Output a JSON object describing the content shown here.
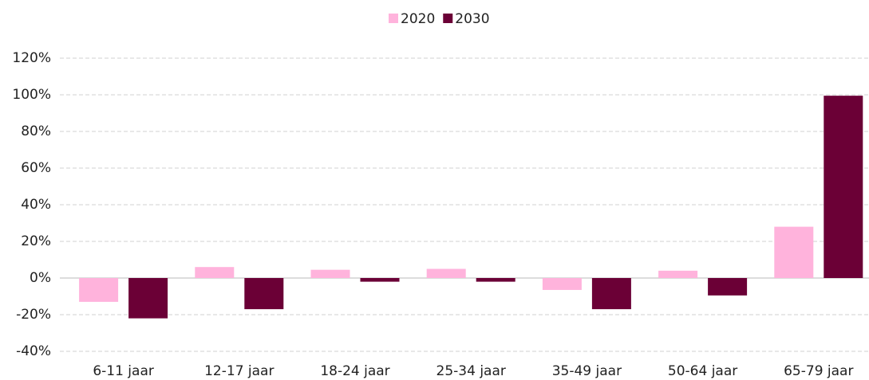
{
  "chart_data": {
    "type": "bar",
    "categories": [
      "6-11 jaar",
      "12-17 jaar",
      "18-24 jaar",
      "25-34 jaar",
      "35-49 jaar",
      "50-64 jaar",
      "65-79 jaar"
    ],
    "series": [
      {
        "name": "2020",
        "color": "#ffb3dc",
        "values": [
          -13,
          6,
          4.5,
          5,
          -6.5,
          4,
          28
        ]
      },
      {
        "name": "2030",
        "color": "#6b0036",
        "values": [
          -22,
          -17,
          -2,
          -2,
          -17,
          -9.5,
          99.5
        ]
      }
    ],
    "ylim": [
      -40,
      120
    ],
    "yticks": [
      {
        "value": -40,
        "label": "-40%"
      },
      {
        "value": -20,
        "label": "-20%"
      },
      {
        "value": 0,
        "label": "0%"
      },
      {
        "value": 20,
        "label": "20%"
      },
      {
        "value": 40,
        "label": "40%"
      },
      {
        "value": 60,
        "label": "60%"
      },
      {
        "value": 80,
        "label": "80%"
      },
      {
        "value": 100,
        "label": "100%"
      },
      {
        "value": 120,
        "label": "120%"
      }
    ],
    "grid": true,
    "legend": "top"
  }
}
